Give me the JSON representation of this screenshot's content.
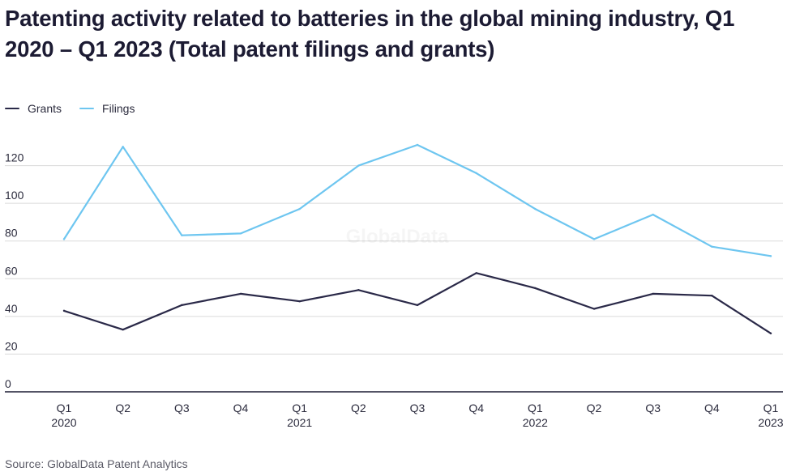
{
  "title": "Patenting activity related to batteries in the global mining industry, Q1 2020 – Q1 2023 (Total patent filings and grants)",
  "source": "Source: GlobalData Patent Analytics",
  "watermark": "GlobalData",
  "colors": {
    "grants": "#2a2948",
    "filings": "#6ec6f0",
    "grid": "#dadada",
    "axis": "#1c1b33",
    "text": "#2b2b3d"
  },
  "chart_data": {
    "type": "line",
    "categories": [
      {
        "line1": "Q1",
        "line2": "2020"
      },
      {
        "line1": "Q2",
        "line2": ""
      },
      {
        "line1": "Q3",
        "line2": ""
      },
      {
        "line1": "Q4",
        "line2": ""
      },
      {
        "line1": "Q1",
        "line2": "2021"
      },
      {
        "line1": "Q2",
        "line2": ""
      },
      {
        "line1": "Q3",
        "line2": ""
      },
      {
        "line1": "Q4",
        "line2": ""
      },
      {
        "line1": "Q1",
        "line2": "2022"
      },
      {
        "line1": "Q2",
        "line2": ""
      },
      {
        "line1": "Q3",
        "line2": ""
      },
      {
        "line1": "Q4",
        "line2": ""
      },
      {
        "line1": "Q1",
        "line2": "2023"
      }
    ],
    "series": [
      {
        "name": "Grants",
        "key": "grants",
        "values": [
          43,
          33,
          46,
          52,
          48,
          54,
          46,
          63,
          55,
          44,
          52,
          51,
          31
        ]
      },
      {
        "name": "Filings",
        "key": "filings",
        "values": [
          81,
          130,
          83,
          84,
          97,
          120,
          131,
          116,
          97,
          81,
          94,
          77,
          72
        ]
      }
    ],
    "ylim": [
      0,
      140
    ],
    "yticks": [
      {
        "value": 0,
        "label": "0"
      },
      {
        "value": 20,
        "label": "20"
      },
      {
        "value": 40,
        "label": "40"
      },
      {
        "value": 60,
        "label": "60"
      },
      {
        "value": 80,
        "label": "80"
      },
      {
        "value": 100,
        "label": "100"
      },
      {
        "value": 120,
        "label": "120"
      }
    ],
    "xlabel": "",
    "ylabel": "",
    "grid": true,
    "legend_position": "top-left"
  }
}
